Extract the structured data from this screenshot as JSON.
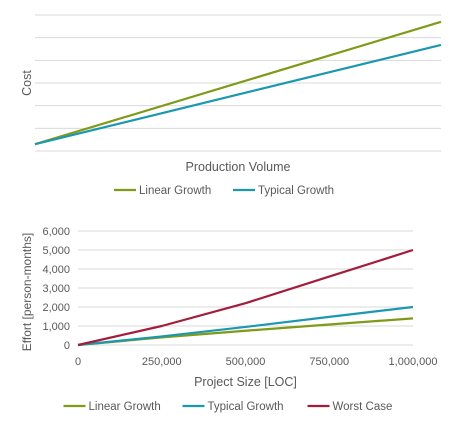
{
  "chart_data": [
    {
      "type": "line",
      "title": "",
      "xlabel": "Production Volume",
      "ylabel": "Cost",
      "x": [
        0,
        1
      ],
      "ylim": [
        0,
        1
      ],
      "grid": true,
      "tick_labels_shown": false,
      "legend_position": "bottom",
      "series": [
        {
          "name": "Linear Growth",
          "color": "#7f9a18",
          "values": [
            0.05,
            0.95
          ]
        },
        {
          "name": "Typical Growth",
          "color": "#1b98b0",
          "values": [
            0.05,
            0.78
          ]
        }
      ]
    },
    {
      "type": "line",
      "title": "",
      "xlabel": "Project Size [LOC]",
      "ylabel": "Effort [person-months]",
      "xlim": [
        0,
        1000000
      ],
      "ylim": [
        0,
        6000
      ],
      "xticks": [
        0,
        250000,
        500000,
        750000,
        1000000
      ],
      "xtick_labels": [
        "0",
        "250,000",
        "500,000",
        "750,000",
        "1,000,000"
      ],
      "yticks": [
        0,
        1000,
        2000,
        3000,
        4000,
        5000,
        6000
      ],
      "ytick_labels": [
        "0",
        "1,000",
        "2,000",
        "3,000",
        "4,000",
        "5,000",
        "6,000"
      ],
      "grid": true,
      "legend_position": "bottom",
      "series": [
        {
          "name": "Linear Growth",
          "color": "#7f9a18",
          "x": [
            0,
            250000,
            500000,
            750000,
            1000000
          ],
          "values": [
            0,
            400,
            750,
            1080,
            1400
          ]
        },
        {
          "name": "Typical Growth",
          "color": "#1b98b0",
          "x": [
            0,
            250000,
            500000,
            750000,
            1000000
          ],
          "values": [
            0,
            450,
            950,
            1480,
            2000
          ]
        },
        {
          "name": "Worst Case",
          "color": "#a31c3c",
          "x": [
            0,
            250000,
            500000,
            750000,
            1000000
          ],
          "values": [
            0,
            1000,
            2200,
            3600,
            5000
          ]
        }
      ]
    }
  ]
}
